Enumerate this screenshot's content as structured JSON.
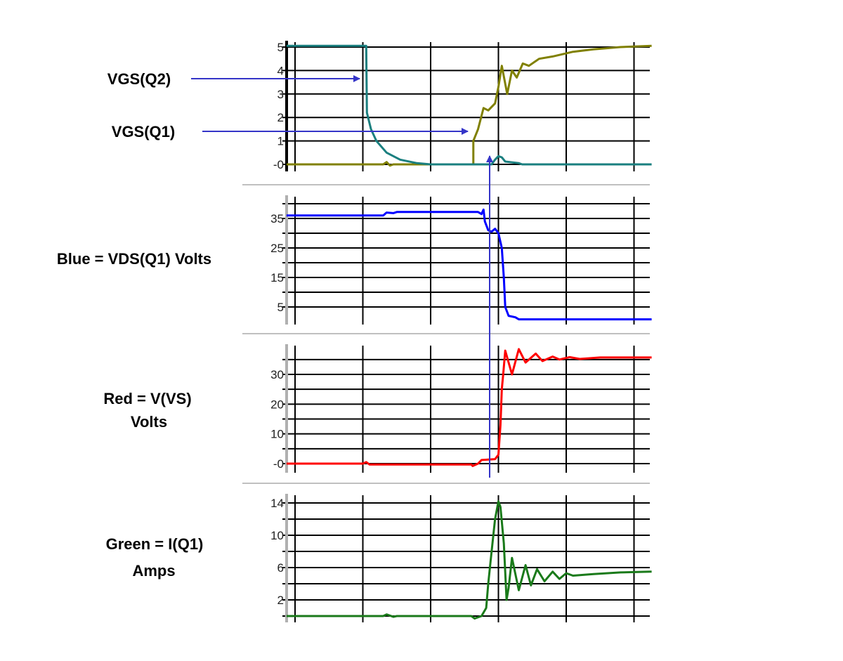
{
  "annotations": {
    "vgs_q2": "VGS(Q2)",
    "vgs_q1": "VGS(Q1)",
    "blue_line1": "Blue = VDS(Q1) Volts",
    "red_line1": "Red = V(VS)",
    "red_line2": "Volts",
    "green_line1": "Green = I(Q1)",
    "green_line2": "Amps",
    "arrow_color": "#3535c8"
  },
  "chart_data": [
    {
      "type": "line",
      "ylim": [
        -0.3,
        5.1
      ],
      "xlim": [
        -0.125,
        5.26
      ],
      "x_gridlines": [
        0,
        1,
        2,
        3,
        4,
        5
      ],
      "y_gridlines": [
        0,
        1,
        2,
        3,
        4,
        5
      ],
      "y_ticks": [
        {
          "v": 5,
          "label": "5"
        },
        {
          "v": 4,
          "label": "4"
        },
        {
          "v": 3,
          "label": "3"
        },
        {
          "v": 2,
          "label": "2"
        },
        {
          "v": 1,
          "label": "1"
        },
        {
          "v": 0,
          "label": "-0"
        }
      ],
      "grid": true,
      "axis_color": "#000000",
      "series": [
        {
          "color": "#808000",
          "x": [
            -0.125,
            1.3,
            1.35,
            1.4,
            1.45,
            1.5,
            2.63,
            2.63,
            2.7,
            2.78,
            2.85,
            2.95,
            3.0,
            3.05,
            3.13,
            3.2,
            3.27,
            3.36,
            3.45,
            3.6,
            3.8,
            4.1,
            4.4,
            4.8,
            5.26
          ],
          "y": [
            0,
            0,
            0.1,
            -0.05,
            0,
            0,
            0,
            1.0,
            1.5,
            2.4,
            2.3,
            2.6,
            3.3,
            4.2,
            3.0,
            4.0,
            3.7,
            4.3,
            4.2,
            4.5,
            4.6,
            4.8,
            4.9,
            5.0,
            5.05
          ]
        },
        {
          "color": "#1a7f7f",
          "x": [
            -0.125,
            1.05,
            1.06,
            1.12,
            1.2,
            1.35,
            1.55,
            1.8,
            2.0,
            2.9,
            2.95,
            3.0,
            3.05,
            3.1,
            3.3,
            3.35,
            5.26
          ],
          "y": [
            5.05,
            5.05,
            2.2,
            1.5,
            1.0,
            0.5,
            0.2,
            0.05,
            0,
            0,
            0.2,
            0.35,
            0.3,
            0.12,
            0.05,
            0,
            0
          ]
        }
      ]
    },
    {
      "type": "line",
      "ylim": [
        -1,
        42
      ],
      "xlim": [
        -0.125,
        5.26
      ],
      "x_gridlines": [
        0,
        1,
        2,
        3,
        4,
        5
      ],
      "y_gridlines": [
        5,
        10,
        15,
        20,
        25,
        30,
        35,
        40
      ],
      "y_ticks": [
        {
          "v": 35,
          "label": "35"
        },
        {
          "v": 25,
          "label": "25"
        },
        {
          "v": 15,
          "label": "15"
        },
        {
          "v": 5,
          "label": "5"
        }
      ],
      "grid": true,
      "axis_color": "#b0b0b0",
      "series": [
        {
          "color": "#0000ff",
          "x": [
            -0.125,
            1.3,
            1.35,
            1.45,
            1.5,
            2.7,
            2.75,
            2.78,
            2.8,
            2.85,
            2.9,
            2.95,
            3.0,
            3.05,
            3.08,
            3.1,
            3.15,
            3.25,
            3.3,
            5.26
          ],
          "y": [
            36,
            36,
            37,
            36.8,
            37.2,
            37.2,
            36.5,
            38,
            34,
            31,
            30.5,
            31.5,
            30,
            25,
            15,
            5,
            2,
            1.5,
            0.8,
            0.8
          ]
        }
      ]
    },
    {
      "type": "line",
      "ylim": [
        -3,
        40
      ],
      "xlim": [
        -0.125,
        5.26
      ],
      "x_gridlines": [
        0,
        1,
        2,
        3,
        4,
        5
      ],
      "y_gridlines": [
        0,
        5,
        10,
        15,
        20,
        25,
        30,
        35
      ],
      "y_ticks": [
        {
          "v": 30,
          "label": "30"
        },
        {
          "v": 20,
          "label": "20"
        },
        {
          "v": 10,
          "label": "10"
        },
        {
          "v": 0,
          "label": "-0"
        }
      ],
      "grid": true,
      "axis_color": "#b0b0b0",
      "series": [
        {
          "color": "#ff0000",
          "x": [
            -0.125,
            1.0,
            1.05,
            1.1,
            2.6,
            2.62,
            2.7,
            2.75,
            2.95,
            3.0,
            3.03,
            3.05,
            3.07,
            3.1,
            3.15,
            3.2,
            3.3,
            3.4,
            3.55,
            3.65,
            3.8,
            3.9,
            4.05,
            4.2,
            4.5,
            5.26
          ],
          "y": [
            0,
            0,
            0.5,
            -0.3,
            -0.3,
            -0.8,
            0,
            1.2,
            1.5,
            3,
            13,
            25,
            30,
            38,
            34,
            30,
            38.5,
            34,
            37,
            34.5,
            36,
            35,
            35.8,
            35.2,
            35.7,
            35.7
          ]
        }
      ]
    },
    {
      "type": "line",
      "ylim": [
        -0.7,
        15
      ],
      "xlim": [
        -0.125,
        5.26
      ],
      "x_gridlines": [
        0,
        1,
        2,
        3,
        4,
        5
      ],
      "y_gridlines": [
        0,
        2,
        4,
        6,
        8,
        10,
        12,
        14
      ],
      "y_ticks": [
        {
          "v": 14,
          "label": "14"
        },
        {
          "v": 10,
          "label": "10"
        },
        {
          "v": 6,
          "label": "6"
        },
        {
          "v": 2,
          "label": "2"
        }
      ],
      "grid": true,
      "axis_color": "#b0b0b0",
      "series": [
        {
          "color": "#1a7a1a",
          "x": [
            -0.125,
            1.3,
            1.35,
            1.45,
            1.5,
            2.6,
            2.65,
            2.75,
            2.82,
            2.85,
            2.9,
            2.95,
            3.0,
            3.03,
            3.08,
            3.12,
            3.15,
            3.2,
            3.3,
            3.4,
            3.48,
            3.57,
            3.68,
            3.8,
            3.9,
            4.0,
            4.1,
            4.4,
            4.8,
            5.26
          ],
          "y": [
            0,
            0,
            0.2,
            -0.1,
            0,
            0,
            -0.3,
            0,
            1,
            4,
            8,
            12,
            14.2,
            13.5,
            9,
            2,
            3.5,
            7.2,
            3.2,
            6.3,
            3.8,
            5.8,
            4.3,
            5.5,
            4.6,
            5.3,
            5.0,
            5.2,
            5.4,
            5.5
          ]
        }
      ]
    }
  ]
}
